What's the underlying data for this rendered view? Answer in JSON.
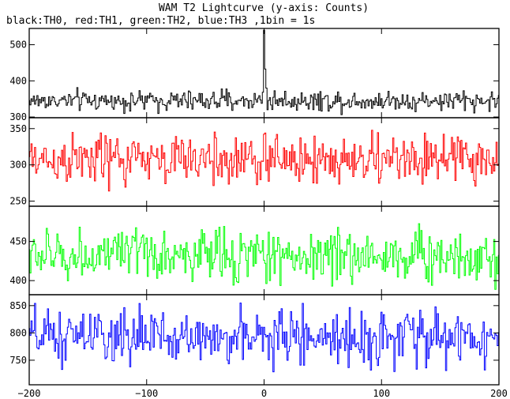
{
  "chart_data": {
    "type": "line",
    "title": "WAM T2 Lightcurve (y-axis: Counts)",
    "subtitle": "black:TH0, red:TH1, green:TH2, blue:TH3 ,1bin = 1s",
    "xlim": [
      -200,
      200
    ],
    "x_ticks": [
      -200,
      -100,
      0,
      100,
      200
    ],
    "x_tick_labels": [
      "−200",
      "−100",
      "0",
      "100",
      "200"
    ],
    "bin_width": 1,
    "grid": false,
    "panels": [
      {
        "series": "TH0",
        "color": "#000000",
        "ylim": [
          298,
          545
        ],
        "y_ticks": [
          300,
          400,
          500
        ],
        "y_tick_labels": [
          "300",
          "400",
          "500"
        ],
        "baseline": 345,
        "noise": 14,
        "spike_peak": 540
      },
      {
        "series": "TH1",
        "color": "#ff0000",
        "ylim": [
          243,
          365
        ],
        "y_ticks": [
          250,
          300,
          350
        ],
        "y_tick_labels": [
          "250",
          "300",
          "350"
        ],
        "baseline": 307,
        "noise": 18
      },
      {
        "series": "TH2",
        "color": "#00ff00",
        "ylim": [
          382,
          495
        ],
        "y_ticks": [
          400,
          450
        ],
        "y_tick_labels": [
          "400",
          "450"
        ],
        "baseline": 432,
        "noise": 17
      },
      {
        "series": "TH3",
        "color": "#0000ff",
        "ylim": [
          705,
          870
        ],
        "y_ticks": [
          750,
          800,
          850
        ],
        "y_tick_labels": [
          "750",
          "800",
          "850"
        ],
        "baseline": 792,
        "noise": 25
      }
    ]
  }
}
